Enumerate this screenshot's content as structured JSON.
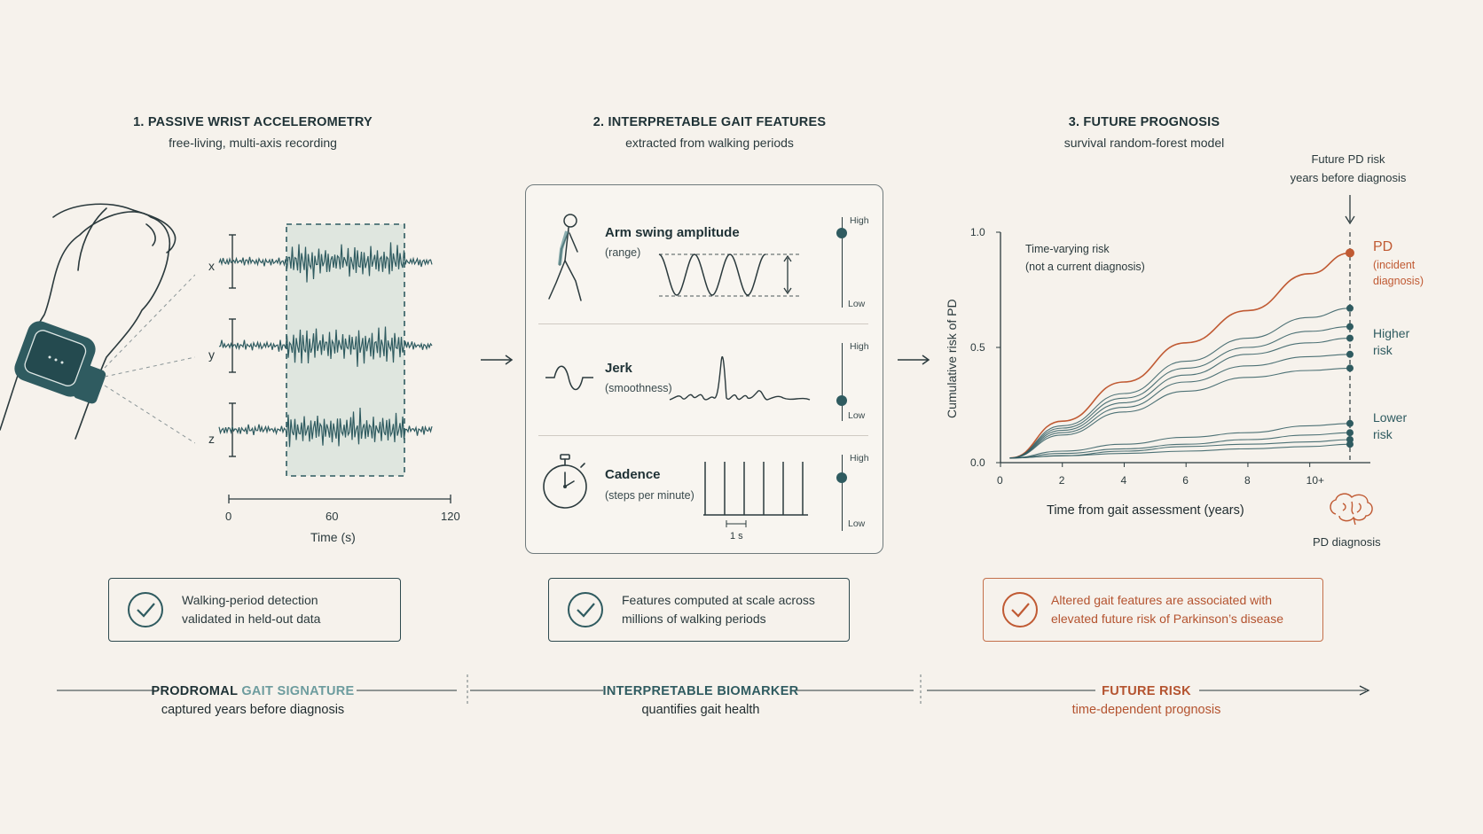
{
  "col1": {
    "title": "1. PASSIVE WRIST ACCELEROMETRY",
    "subtitle": "free-living, multi-axis recording",
    "axes": [
      "x",
      "y",
      "z"
    ],
    "time_ticks": [
      "0",
      "60",
      "120"
    ],
    "time_label": "Time (s)"
  },
  "col2": {
    "title": "2. INTERPRETABLE GAIT FEATURES",
    "subtitle": "extracted from walking periods",
    "features": [
      {
        "name": "Arm swing amplitude",
        "sub": "(range)",
        "high": "High",
        "low": "Low",
        "level": 0.85
      },
      {
        "name": "Jerk",
        "sub": "(smoothness)",
        "high": "High",
        "low": "Low",
        "level": 0.2
      },
      {
        "name": "Cadence",
        "sub": "(steps per minute)",
        "high": "High",
        "low": "Low",
        "level": 0.7
      }
    ],
    "cadence_scale": "1 s"
  },
  "col3": {
    "title": "3. FUTURE PROGNOSIS",
    "subtitle": "survival random-forest model",
    "annotation_top": [
      "Future PD risk",
      "years before diagnosis"
    ],
    "tv_risk": [
      "Time-varying risk",
      "(not a current diagnosis)"
    ],
    "pd_label": "PD",
    "pd_sub": [
      "(incident",
      "diagnosis)"
    ],
    "higher_risk": [
      "Higher",
      "risk"
    ],
    "lower_risk": [
      "Lower",
      "risk"
    ],
    "pd_diagnosis": "PD diagnosis"
  },
  "chart_data": {
    "type": "line",
    "xlabel": "Time from gait assessment (years)",
    "ylabel": "Cumulative risk of PD",
    "x_ticks": [
      "0",
      "2",
      "4",
      "6",
      "8",
      "10+"
    ],
    "y_ticks": [
      "0.0",
      "0.5",
      "1.0"
    ],
    "xlim": [
      0,
      11.3
    ],
    "ylim": [
      0,
      1.0
    ],
    "series": [
      {
        "name": "PD",
        "color": "#c05a33",
        "x": [
          0.3,
          2,
          4,
          6,
          8,
          10,
          11.3
        ],
        "y": [
          0.02,
          0.18,
          0.35,
          0.52,
          0.66,
          0.82,
          0.91
        ]
      },
      {
        "color": "#2f5b60",
        "x": [
          0.3,
          2,
          4,
          6,
          8,
          10,
          11.3
        ],
        "y": [
          0.02,
          0.16,
          0.3,
          0.44,
          0.54,
          0.63,
          0.67
        ]
      },
      {
        "color": "#2f5b60",
        "x": [
          0.3,
          2,
          4,
          6,
          8,
          10,
          11.3
        ],
        "y": [
          0.02,
          0.15,
          0.28,
          0.41,
          0.5,
          0.57,
          0.59
        ]
      },
      {
        "color": "#2f5b60",
        "x": [
          0.3,
          2,
          4,
          6,
          8,
          10,
          11.3
        ],
        "y": [
          0.02,
          0.14,
          0.26,
          0.38,
          0.47,
          0.52,
          0.54
        ]
      },
      {
        "color": "#2f5b60",
        "x": [
          0.3,
          2,
          4,
          6,
          8,
          10,
          11.3
        ],
        "y": [
          0.02,
          0.13,
          0.24,
          0.35,
          0.42,
          0.46,
          0.47
        ]
      },
      {
        "color": "#2f5b60",
        "x": [
          0.3,
          2,
          4,
          6,
          8,
          10,
          11.3
        ],
        "y": [
          0.02,
          0.12,
          0.22,
          0.31,
          0.37,
          0.4,
          0.41
        ]
      },
      {
        "color": "#2f5b60",
        "x": [
          0.3,
          2,
          4,
          6,
          8,
          10,
          11.3
        ],
        "y": [
          0.02,
          0.05,
          0.08,
          0.11,
          0.13,
          0.16,
          0.17
        ]
      },
      {
        "color": "#2f5b60",
        "x": [
          0.3,
          2,
          4,
          6,
          8,
          10,
          11.3
        ],
        "y": [
          0.02,
          0.04,
          0.06,
          0.08,
          0.1,
          0.12,
          0.13
        ]
      },
      {
        "color": "#2f5b60",
        "x": [
          0.3,
          2,
          4,
          6,
          8,
          10,
          11.3
        ],
        "y": [
          0.02,
          0.03,
          0.05,
          0.07,
          0.08,
          0.09,
          0.1
        ]
      },
      {
        "color": "#2f5b60",
        "x": [
          0.3,
          2,
          4,
          6,
          8,
          10,
          11.3
        ],
        "y": [
          0.02,
          0.03,
          0.04,
          0.05,
          0.06,
          0.07,
          0.08
        ]
      }
    ]
  },
  "cards": [
    {
      "lines": [
        "Walking-period detection",
        "validated in held-out data"
      ]
    },
    {
      "lines": [
        "Features computed at scale across",
        "millions of walking periods"
      ]
    },
    {
      "lines": [
        "Altered gait features are associated with",
        "elevated future risk of Parkinson’s disease"
      ]
    }
  ],
  "bottom": [
    {
      "title_a": "PRODROMAL",
      "title_b": "GAIT SIGNATURE",
      "sub": "captured years before diagnosis"
    },
    {
      "title": "INTERPRETABLE BIOMARKER",
      "sub": "quantifies gait health"
    },
    {
      "title": "FUTURE RISK",
      "sub": "time-dependent prognosis"
    }
  ],
  "colors": {
    "teal": "#2f5b60",
    "orange": "#c05a33",
    "bg": "#f6f2ec"
  }
}
